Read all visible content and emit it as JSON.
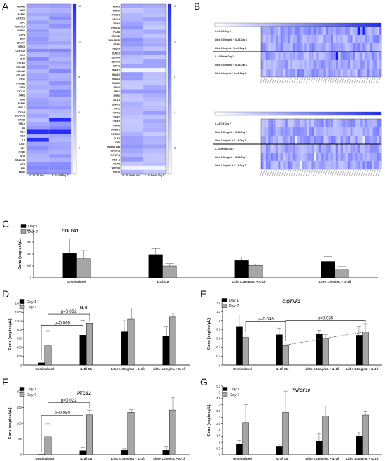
{
  "panels": {
    "A": {
      "letter": "A",
      "colorbar_ticks": [
        "15",
        "10",
        "5",
        "0",
        "-5"
      ],
      "left_heatmap": {
        "rows": [
          "ADAM8",
          "ADM",
          "AEBP1",
          "AKR1C1",
          "ALPL",
          "ANGPTL4",
          "ARRA1",
          "ASPN",
          "BDM",
          "BGLAP",
          "BIRC3",
          "C1orf115",
          "CCL2",
          "CD14",
          "CFLAR",
          "COL1A1",
          "COL1A2",
          "COL4A1",
          "CTGF",
          "CTNNB1",
          "CTSK",
          "CXCL12",
          "DKK1",
          "ENG",
          "FABP4",
          "FELL1",
          "FSTL1",
          "GADD45B",
          "GPR22",
          "HIF1A",
          "ID1",
          "IL1A",
          "IL1B",
          "IL6",
          "IL6ST",
          "LEP",
          "ITGB1",
          "KDR",
          "KIAA1524",
          "KLF4",
          "LRP1",
          "MMP1"
        ],
        "columns": [
          "IL-1ß CM Day 1",
          "IL-1ß CM Day 7"
        ]
      },
      "right_heatmap": {
        "rows": [
          "MMP3",
          "MMP9",
          "MYOD1",
          "NR4A2",
          "PDK4",
          "PIK3CA",
          "PLAU",
          "PRKCD",
          "PRKAR2B",
          "PTEN",
          "PTGS2",
          "RUNX2",
          "S100A4",
          "S100A6",
          "SIRT1",
          "SMAD1",
          "SMAD2",
          "SMAD3",
          "SMAD5",
          "SOX9",
          "SPP1",
          "SRPX",
          "SULF1",
          "SUMO3",
          "TFPI2",
          "TGFB1",
          "TGFB2",
          "TGFB3",
          "TGFBI",
          "TGFBR1",
          "TGFBR2",
          "TLR2",
          "TNF",
          "TNFRSF11B",
          "TNFSF10",
          "TNFSF11",
          "TWIST1",
          "VCAN",
          "WNT7B",
          "ZFP36"
        ],
        "columns": [
          "IL-1ß Media Day 1",
          "IL-1ß Media Day 7"
        ]
      }
    },
    "B": {
      "letter": "B",
      "colorbar_ticks": [
        "-6",
        "-4",
        "-2",
        "0",
        "2",
        "4",
        "6",
        "8",
        "10",
        "12",
        "14",
        "16",
        "18"
      ],
      "top_rows": [
        "IL-1ß CM Day 1",
        "Litho 0.25mg/mL + IL-1ß Day 1",
        "Litho 1.0mg/mL + IL-1ß Day 1",
        "IL-1ß Media Day 1",
        "Litho 0.25mg/mL + IL-1ß Day 1",
        "Litho 1.0mg/mL + IL-1ß Day 1"
      ],
      "bottom_rows": [
        "IL-1ß CM Day 7",
        "Litho 0.25mg/mL + IL-1ß Day 7",
        "Litho 1.0mg/mL + IL-1ß Day 7",
        "IL-1ß Media Day 7",
        "Litho 0.25mg/mL + IL-1ß Day 7",
        "Litho 1.0mg/mL + IL-1ß Day 7"
      ]
    },
    "C": {
      "letter": "C"
    },
    "D": {
      "letter": "D"
    },
    "E": {
      "letter": "E"
    },
    "F": {
      "letter": "F"
    },
    "G": {
      "letter": "G"
    }
  },
  "chart_data": [
    {
      "panel": "C",
      "type": "bar",
      "title": "COL1A1",
      "ylabel": "Conc (copies/µL)",
      "categories": [
        "Unstimulated",
        "IL-1ß CM",
        "Litho 0.25mg/mL + IL-1ß",
        "Litho 1.0mg/mL + IL-1ß"
      ],
      "series": [
        {
          "name": "Day 1",
          "values": [
            205,
            195,
            145,
            138
          ],
          "errors": [
            120,
            50,
            30,
            40
          ]
        },
        {
          "name": "Day 7",
          "values": [
            160,
            100,
            105,
            75
          ],
          "errors": [
            70,
            20,
            10,
            20
          ]
        }
      ],
      "ylim": [
        0,
        400
      ],
      "yticks": [
        0,
        100,
        200,
        300,
        400
      ],
      "legend": "top-left",
      "annotations": []
    },
    {
      "panel": "D",
      "type": "bar",
      "title": "IL-6",
      "ylabel": "Conc (copies/µL)",
      "categories": [
        "Unstimulated",
        "IL-1ß CM",
        "Litho 0.25mg/mL + IL-1ß",
        "Litho 1.0mg/mL + IL-1ß"
      ],
      "series": [
        {
          "name": "Day 1",
          "values": [
            50,
            680,
            770,
            660
          ],
          "errors": [
            20,
            330,
            250,
            220
          ]
        },
        {
          "name": "Day 7",
          "values": [
            450,
            950,
            1050,
            1100
          ],
          "errors": [
            330,
            0,
            250,
            80
          ]
        }
      ],
      "ylim": [
        0,
        1400
      ],
      "yticks": [
        0,
        200,
        400,
        600,
        800,
        1000,
        1200,
        1400
      ],
      "legend": "top-left",
      "annotations": [
        {
          "text": "p=0.009",
          "from": [
            0,
            0
          ],
          "to": [
            1,
            0
          ],
          "y": 900,
          "style": "solid"
        },
        {
          "text": "p=0.052",
          "from": [
            0,
            1
          ],
          "to": [
            1,
            1
          ],
          "y": 1160,
          "style": "solid"
        }
      ]
    },
    {
      "panel": "E",
      "type": "bar",
      "title": "CIQTNF2",
      "ylabel": "Conc (copies/µL)",
      "categories": [
        "Unstimulated",
        "IL-1ß CM",
        "Litho 0.25mg/mL + IL-1ß",
        "Litho 1.0mg/mL + IL-1ß"
      ],
      "series": [
        {
          "name": "Day 1",
          "values": [
            0.87,
            0.68,
            0.7,
            0.67
          ],
          "errors": [
            0.25,
            0.15,
            0.08,
            0.2
          ]
        },
        {
          "name": "Day 7",
          "values": [
            0.62,
            0.45,
            0.6,
            0.75
          ],
          "errors": [
            0.08,
            0.05,
            0.08,
            0.18
          ]
        }
      ],
      "ylim": [
        0,
        1.4
      ],
      "yticks": [
        0,
        0.2,
        0.4,
        0.6,
        0.8,
        1.0,
        1.2,
        1.4
      ],
      "legend": "top-left",
      "annotations": [
        {
          "text": "p=0.048",
          "from": [
            0,
            1
          ],
          "to": [
            1,
            1
          ],
          "y": 0.98,
          "style": "solid"
        },
        {
          "text": "p=0.035",
          "from": [
            1,
            1
          ],
          "to": [
            3,
            1
          ],
          "y": 1.0,
          "style": "solid"
        },
        {
          "text": "",
          "from": [
            1,
            1
          ],
          "to": [
            3,
            1
          ],
          "y": null,
          "style": "dotted-trend"
        }
      ]
    },
    {
      "panel": "F",
      "type": "bar",
      "title": "PTGS2",
      "ylabel": "Conc (copies/µL)",
      "categories": [
        "Unstimulated",
        "IL-1ß CM",
        "Litho 0.25mg/mL + IL-1ß",
        "Litho 1.0mg/mL + IL-1ß"
      ],
      "series": [
        {
          "name": "Day 1",
          "values": [
            1,
            14,
            15,
            15
          ],
          "errors": [
            0,
            10,
            3,
            10
          ]
        },
        {
          "name": "Day 7",
          "values": [
            58,
            127,
            135,
            142
          ],
          "errors": [
            40,
            15,
            8,
            40
          ]
        }
      ],
      "ylim": [
        0,
        200
      ],
      "yticks": [
        0,
        50,
        100,
        150,
        200
      ],
      "legend": "top-left",
      "annotations": [
        {
          "text": "p=0.050",
          "from": [
            0,
            0
          ],
          "to": [
            1,
            0
          ],
          "y": 125,
          "style": "solid"
        },
        {
          "text": "p=0.022",
          "from": [
            0,
            1
          ],
          "to": [
            1,
            1
          ],
          "y": 165,
          "style": "solid"
        }
      ]
    },
    {
      "panel": "G",
      "type": "bar",
      "title": "TNFSF10",
      "ylabel": "Conc (copies/µL)",
      "categories": [
        "Unstimulated",
        "IL-1ß CM",
        "Litho 0.25mg/mL + IL-1ß",
        "Litho 1.0mg/mL + IL-1ß"
      ],
      "series": [
        {
          "name": "Day 1",
          "values": [
            0.85,
            0.65,
            1.1,
            1.5
          ],
          "errors": [
            0.3,
            0.2,
            0.6,
            0.3
          ]
        },
        {
          "name": "Day 7",
          "values": [
            2.6,
            3.4,
            3.1,
            3.2
          ],
          "errors": [
            1.4,
            1.7,
            0.8,
            0.25
          ]
        }
      ],
      "ylim": [
        0,
        5.5
      ],
      "yticks": [
        0,
        0.5,
        1.0,
        1.5,
        2.0,
        2.5,
        3.0,
        3.5,
        4.0,
        4.5,
        5.0,
        5.5
      ],
      "legend": "top-left",
      "annotations": []
    }
  ]
}
